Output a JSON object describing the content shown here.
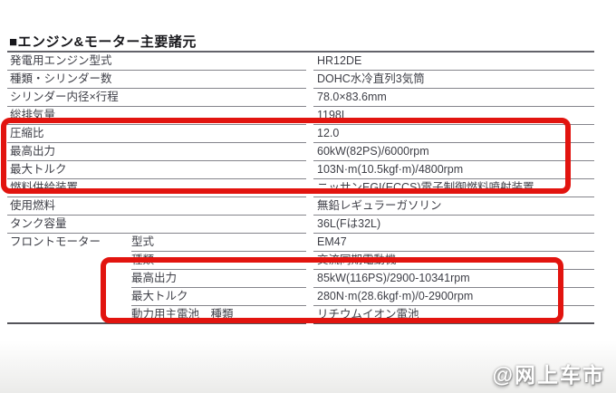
{
  "page": {
    "title": "■エンジン&モーター主要諸元",
    "watermark": "@网上车市"
  },
  "colors": {
    "highlight_red": "#e2140f",
    "text": "#3e3f47",
    "rule_gray": "#84848b"
  },
  "table": {
    "rows": [
      {
        "label": "発電用エンジン型式",
        "value": "HR12DE"
      },
      {
        "label": "種類・シリンダー数",
        "value": "DOHC水冷直列3気筒"
      },
      {
        "label": "シリンダー内径×行程",
        "value": "78.0×83.6mm"
      },
      {
        "label": "総排気量",
        "value": "1198L"
      },
      {
        "label": "圧縮比",
        "value": "12.0",
        "highlighted": true
      },
      {
        "label": "最高出力",
        "value": "60kW(82PS)/6000rpm",
        "highlighted": true
      },
      {
        "label": "最大トルク",
        "value": "103N·m(10.5kgf·m)/4800rpm",
        "highlighted": true
      },
      {
        "label": "燃料供給装置",
        "value": "ニッサンEGI(ECCS)電子制御燃料噴射装置"
      },
      {
        "label": "使用燃料",
        "value": "無鉛レギュラーガソリン"
      },
      {
        "label": "タンク容量",
        "value": "36L(Fは32L)"
      },
      {
        "group": "フロントモーター",
        "label": "型式",
        "value": "EM47"
      },
      {
        "group": "",
        "label": "種類",
        "value": "交流同期電動機"
      },
      {
        "group": "",
        "label": "最高出力",
        "value": "85kW(116PS)/2900-10341rpm",
        "highlighted": true
      },
      {
        "group": "",
        "label": "最大トルク",
        "value": "280N·m(28.6kgf·m)/0-2900rpm",
        "highlighted": true
      },
      {
        "group": "",
        "label": "動力用主電池　種類",
        "value": "リチウムイオン電池"
      }
    ]
  }
}
